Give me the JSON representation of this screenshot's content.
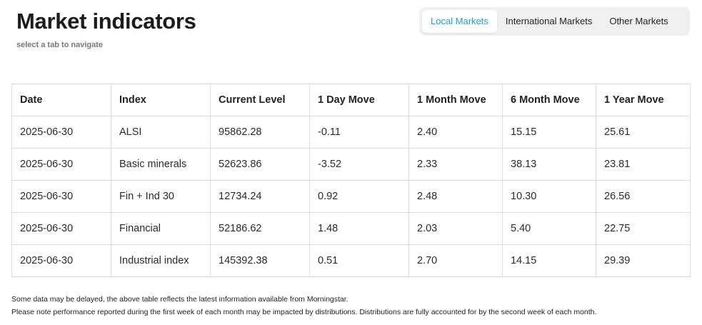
{
  "header": {
    "title": "Market indicators",
    "subtitle": "select a tab to navigate"
  },
  "tabs": [
    {
      "label": "Local Markets",
      "active": true
    },
    {
      "label": "International Markets",
      "active": false
    },
    {
      "label": "Other Markets",
      "active": false
    }
  ],
  "colors": {
    "accent": "#1a9fd6",
    "tab_background": "#f0f0f0",
    "border": "#dcdcdc"
  },
  "table": {
    "columns": [
      "Date",
      "Index",
      "Current Level",
      "1 Day Move",
      "1 Month Move",
      "6 Month Move",
      "1 Year Move"
    ],
    "rows": [
      [
        "2025-06-30",
        "ALSI",
        "95862.28",
        "-0.11",
        "2.40",
        "15.15",
        "25.61"
      ],
      [
        "2025-06-30",
        "Basic minerals",
        "52623.86",
        "-3.52",
        "2.33",
        "38.13",
        "23.81"
      ],
      [
        "2025-06-30",
        "Fin + Ind 30",
        "12734.24",
        "0.92",
        "2.48",
        "10.30",
        "26.56"
      ],
      [
        "2025-06-30",
        "Financial",
        "52186.62",
        "1.48",
        "2.03",
        "5.40",
        "22.75"
      ],
      [
        "2025-06-30",
        "Industrial index",
        "145392.38",
        "0.51",
        "2.70",
        "14.15",
        "29.39"
      ]
    ]
  },
  "footnotes": [
    "Some data may be delayed, the above table reflects the latest information available from Morningstar.",
    "Please note performance reported during the first week of each month may be impacted by distributions. Distributions are fully accounted for by the second week of each month."
  ]
}
